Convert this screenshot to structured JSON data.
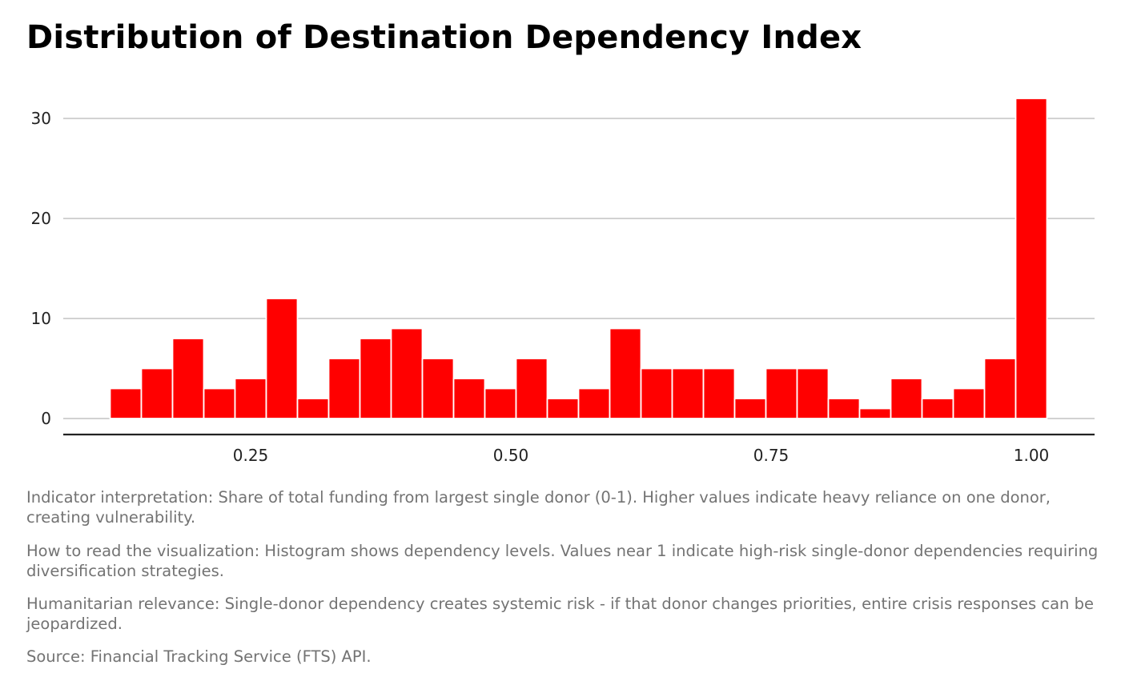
{
  "chart_data": {
    "type": "bar",
    "subtype": "histogram",
    "title": "Distribution of Destination Dependency Index",
    "xlabel": "",
    "ylabel": "",
    "bin_width": 0.03,
    "bin_centers": [
      0.13,
      0.16,
      0.19,
      0.22,
      0.25,
      0.28,
      0.31,
      0.34,
      0.37,
      0.4,
      0.43,
      0.46,
      0.49,
      0.52,
      0.55,
      0.58,
      0.61,
      0.64,
      0.67,
      0.7,
      0.73,
      0.76,
      0.79,
      0.82,
      0.85,
      0.88,
      0.91,
      0.94,
      0.97,
      1.0
    ],
    "values": [
      3,
      5,
      8,
      3,
      4,
      12,
      2,
      6,
      8,
      9,
      6,
      4,
      3,
      6,
      2,
      3,
      9,
      5,
      5,
      5,
      2,
      5,
      5,
      2,
      1,
      4,
      2,
      3,
      6,
      32
    ],
    "xlim": [
      0.08,
      1.06
    ],
    "ylim": [
      -1.6,
      33.5
    ],
    "x_ticks": [
      0.25,
      0.5,
      0.75,
      1.0
    ],
    "x_tick_labels": [
      "0.25",
      "0.50",
      "0.75",
      "1.00"
    ],
    "y_ticks": [
      0,
      10,
      20,
      30
    ],
    "y_tick_labels": [
      "0",
      "10",
      "20",
      "30"
    ],
    "grid": "horizontal",
    "bar_color": "#FF0000",
    "legend": "none"
  },
  "captions": [
    "Indicator interpretation: Share of total funding from largest single donor (0-1). Higher values indicate heavy reliance on one donor, creating vulnerability.",
    "How to read the visualization: Histogram shows dependency levels. Values near 1 indicate high-risk single-donor dependencies requiring diversification strategies.",
    "Humanitarian relevance: Single-donor dependency creates systemic risk - if that donor changes priorities, entire crisis responses can be jeopardized.",
    "Source: Financial Tracking Service (FTS) API."
  ]
}
